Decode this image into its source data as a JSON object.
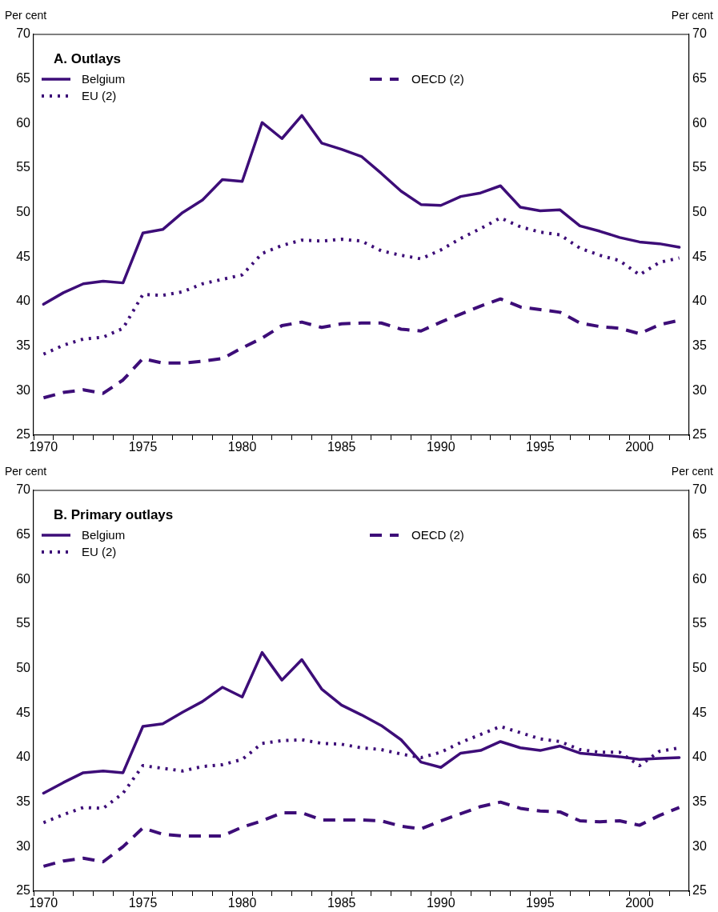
{
  "chart_data": [
    {
      "type": "line",
      "title": "A. Outlays",
      "ylabel": "Per cent",
      "y2label": "Per cent",
      "categories": [
        "1970",
        null,
        null,
        null,
        null,
        "1975",
        null,
        null,
        null,
        null,
        "1980",
        null,
        null,
        null,
        null,
        "1985",
        null,
        null,
        null,
        null,
        "1990",
        null,
        null,
        null,
        null,
        "1995",
        null,
        null,
        null,
        null,
        "2000",
        null,
        null
      ],
      "series": [
        {
          "name": "Belgium",
          "color": "#3d0d78",
          "line_style": "solid",
          "values": [
            39.7,
            41.0,
            42.0,
            42.3,
            42.1,
            47.7,
            48.1,
            50.0,
            51.4,
            53.7,
            53.5,
            60.1,
            58.3,
            60.9,
            57.8,
            57.1,
            56.3,
            54.4,
            52.4,
            50.9,
            50.8,
            51.8,
            52.2,
            53.0,
            50.6,
            50.2,
            50.3,
            48.5,
            47.9,
            47.2,
            46.7,
            46.5,
            46.1
          ]
        },
        {
          "name": "EU (2)",
          "color": "#3d0d78",
          "line_style": "dotted",
          "values": [
            34.1,
            35.1,
            35.8,
            36.0,
            37.0,
            40.8,
            40.7,
            41.1,
            42.0,
            42.5,
            43.0,
            45.4,
            46.3,
            46.9,
            46.8,
            47.0,
            46.8,
            45.7,
            45.2,
            44.8,
            45.8,
            47.1,
            48.2,
            49.4,
            48.4,
            47.8,
            47.5,
            46.0,
            45.2,
            44.6,
            43.0,
            44.4,
            44.9
          ]
        },
        {
          "name": "OECD (2)",
          "color": "#3d0d78",
          "line_style": "dashed",
          "values": [
            29.2,
            29.8,
            30.1,
            29.7,
            31.2,
            33.6,
            33.1,
            33.1,
            33.3,
            33.6,
            34.8,
            35.9,
            37.3,
            37.7,
            37.1,
            37.5,
            37.6,
            37.6,
            36.9,
            36.7,
            37.7,
            38.6,
            39.5,
            40.3,
            39.4,
            39.1,
            38.8,
            37.6,
            37.2,
            37.0,
            36.4,
            37.4,
            37.9
          ]
        }
      ],
      "ylim": [
        25,
        70
      ],
      "yticks": [
        25,
        30,
        35,
        40,
        45,
        50,
        55,
        60,
        65,
        70
      ],
      "y2lim": [
        25,
        70
      ],
      "y2ticks": [
        25,
        30,
        35,
        40,
        45,
        50,
        55,
        60,
        65,
        70
      ],
      "legend": "top left",
      "grid": false,
      "marker": "none"
    },
    {
      "type": "line",
      "title": "B. Primary outlays",
      "ylabel": "Per cent",
      "y2label": "Per cent",
      "categories": [
        "1970",
        null,
        null,
        null,
        null,
        "1975",
        null,
        null,
        null,
        null,
        "1980",
        null,
        null,
        null,
        null,
        "1985",
        null,
        null,
        null,
        null,
        "1990",
        null,
        null,
        null,
        null,
        "1995",
        null,
        null,
        null,
        null,
        "2000",
        null,
        null
      ],
      "series": [
        {
          "name": "Belgium",
          "color": "#3d0d78",
          "line_style": "solid",
          "values": [
            36.0,
            37.2,
            38.3,
            38.5,
            38.3,
            43.5,
            43.8,
            45.1,
            46.3,
            47.9,
            46.8,
            51.8,
            48.7,
            51.0,
            47.7,
            45.9,
            44.8,
            43.6,
            42.0,
            39.5,
            38.9,
            40.5,
            40.8,
            41.8,
            41.1,
            40.8,
            41.3,
            40.5,
            40.3,
            40.1,
            39.8,
            39.9,
            40.0
          ]
        },
        {
          "name": "EU (2)",
          "color": "#3d0d78",
          "line_style": "dotted",
          "values": [
            32.7,
            33.6,
            34.4,
            34.3,
            36.0,
            39.1,
            38.8,
            38.5,
            39.0,
            39.2,
            39.8,
            41.6,
            41.9,
            42.0,
            41.6,
            41.5,
            41.1,
            40.9,
            40.4,
            40.0,
            40.6,
            41.7,
            42.6,
            43.5,
            42.8,
            42.1,
            41.8,
            40.9,
            40.6,
            40.6,
            39.1,
            40.7,
            41.1
          ]
        },
        {
          "name": "OECD (2)",
          "color": "#3d0d78",
          "line_style": "dashed",
          "values": [
            27.8,
            28.4,
            28.7,
            28.3,
            30.0,
            32.1,
            31.4,
            31.2,
            31.2,
            31.2,
            32.2,
            32.9,
            33.8,
            33.8,
            33.0,
            33.0,
            33.0,
            32.9,
            32.3,
            32.0,
            32.9,
            33.7,
            34.5,
            35.0,
            34.3,
            34.0,
            33.9,
            32.9,
            32.8,
            32.9,
            32.4,
            33.5,
            34.4
          ]
        }
      ],
      "ylim": [
        25,
        70
      ],
      "yticks": [
        25,
        30,
        35,
        40,
        45,
        50,
        55,
        60,
        65,
        70
      ],
      "y2lim": [
        25,
        70
      ],
      "y2ticks": [
        25,
        30,
        35,
        40,
        45,
        50,
        55,
        60,
        65,
        70
      ],
      "legend": "top left",
      "grid": false,
      "marker": "none"
    }
  ]
}
